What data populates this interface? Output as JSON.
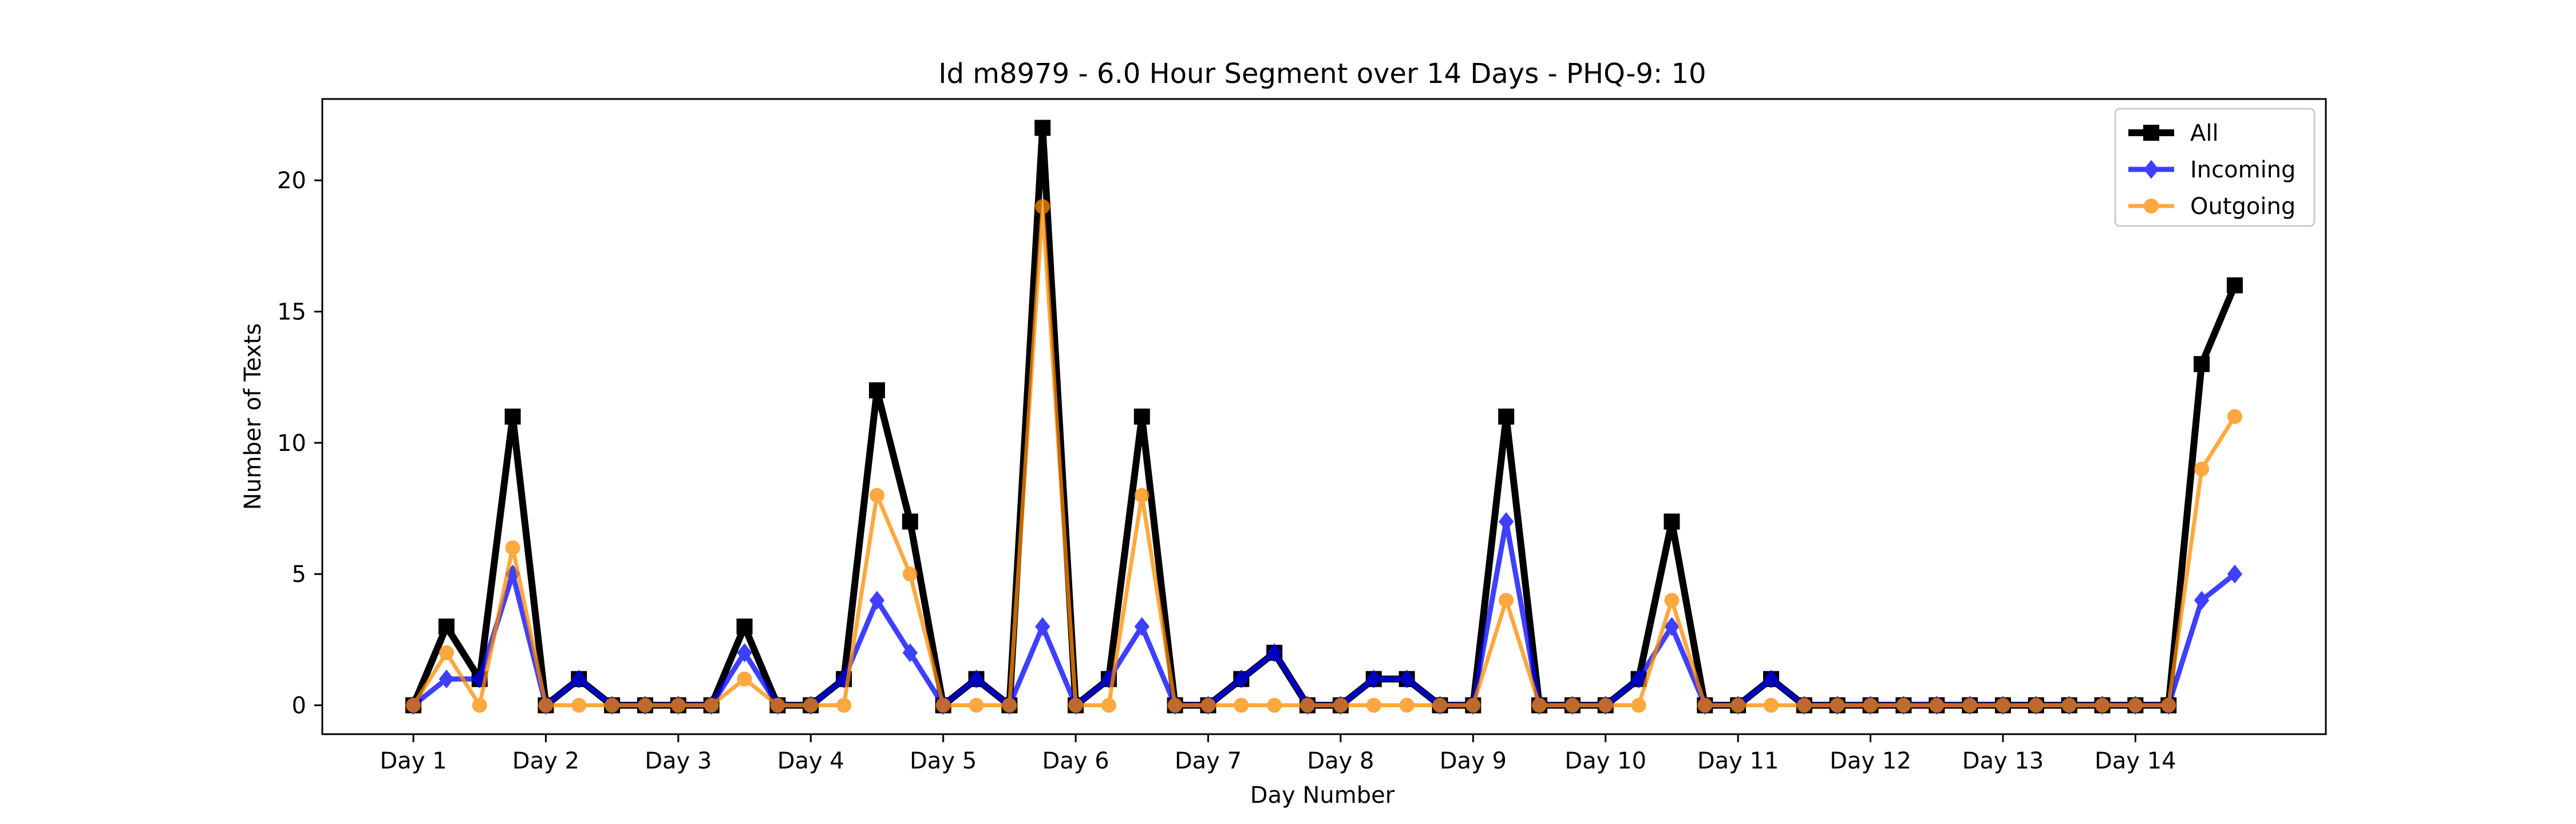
{
  "chart_data": {
    "type": "line",
    "title": "Id m8979 - 6.0 Hour Segment over 14 Days - PHQ-9: 10",
    "xlabel": "Day Number",
    "ylabel": "Number of Texts",
    "x_tick_labels": [
      "Day 1",
      "Day 2",
      "Day 3",
      "Day 4",
      "Day 5",
      "Day 6",
      "Day 7",
      "Day 8",
      "Day 9",
      "Day 10",
      "Day 11",
      "Day 12",
      "Day 13",
      "Day 14"
    ],
    "y_ticks": [
      0,
      5,
      10,
      15,
      20
    ],
    "xlim": [
      -2.75,
      57.75
    ],
    "ylim": [
      -1.1,
      23.1
    ],
    "grid": false,
    "legend_position": "top-right",
    "series": [
      {
        "name": "All",
        "color": "#000000",
        "marker": "square",
        "values": [
          0,
          3,
          1,
          11,
          0,
          1,
          0,
          0,
          0,
          0,
          3,
          0,
          0,
          1,
          12,
          7,
          0,
          1,
          0,
          22,
          0,
          1,
          11,
          0,
          0,
          1,
          2,
          0,
          0,
          1,
          1,
          0,
          0,
          11,
          0,
          0,
          0,
          1,
          7,
          0,
          0,
          1,
          0,
          0,
          0,
          0,
          0,
          0,
          0,
          0,
          0,
          0,
          0,
          0,
          13,
          16
        ]
      },
      {
        "name": "Incoming",
        "color": "#0000ff",
        "marker": "diamond",
        "values": [
          0,
          1,
          1,
          5,
          0,
          1,
          0,
          0,
          0,
          0,
          2,
          0,
          0,
          1,
          4,
          2,
          0,
          1,
          0,
          3,
          0,
          1,
          3,
          0,
          0,
          1,
          2,
          0,
          0,
          1,
          1,
          0,
          0,
          7,
          0,
          0,
          0,
          1,
          3,
          0,
          0,
          1,
          0,
          0,
          0,
          0,
          0,
          0,
          0,
          0,
          0,
          0,
          0,
          0,
          4,
          5
        ]
      },
      {
        "name": "Outgoing",
        "color": "#ff8c00",
        "marker": "circle",
        "values": [
          0,
          2,
          0,
          6,
          0,
          0,
          0,
          0,
          0,
          0,
          1,
          0,
          0,
          0,
          8,
          5,
          0,
          0,
          0,
          19,
          0,
          0,
          8,
          0,
          0,
          0,
          0,
          0,
          0,
          0,
          0,
          0,
          0,
          4,
          0,
          0,
          0,
          0,
          4,
          0,
          0,
          0,
          0,
          0,
          0,
          0,
          0,
          0,
          0,
          0,
          0,
          0,
          0,
          0,
          9,
          11
        ]
      }
    ]
  }
}
